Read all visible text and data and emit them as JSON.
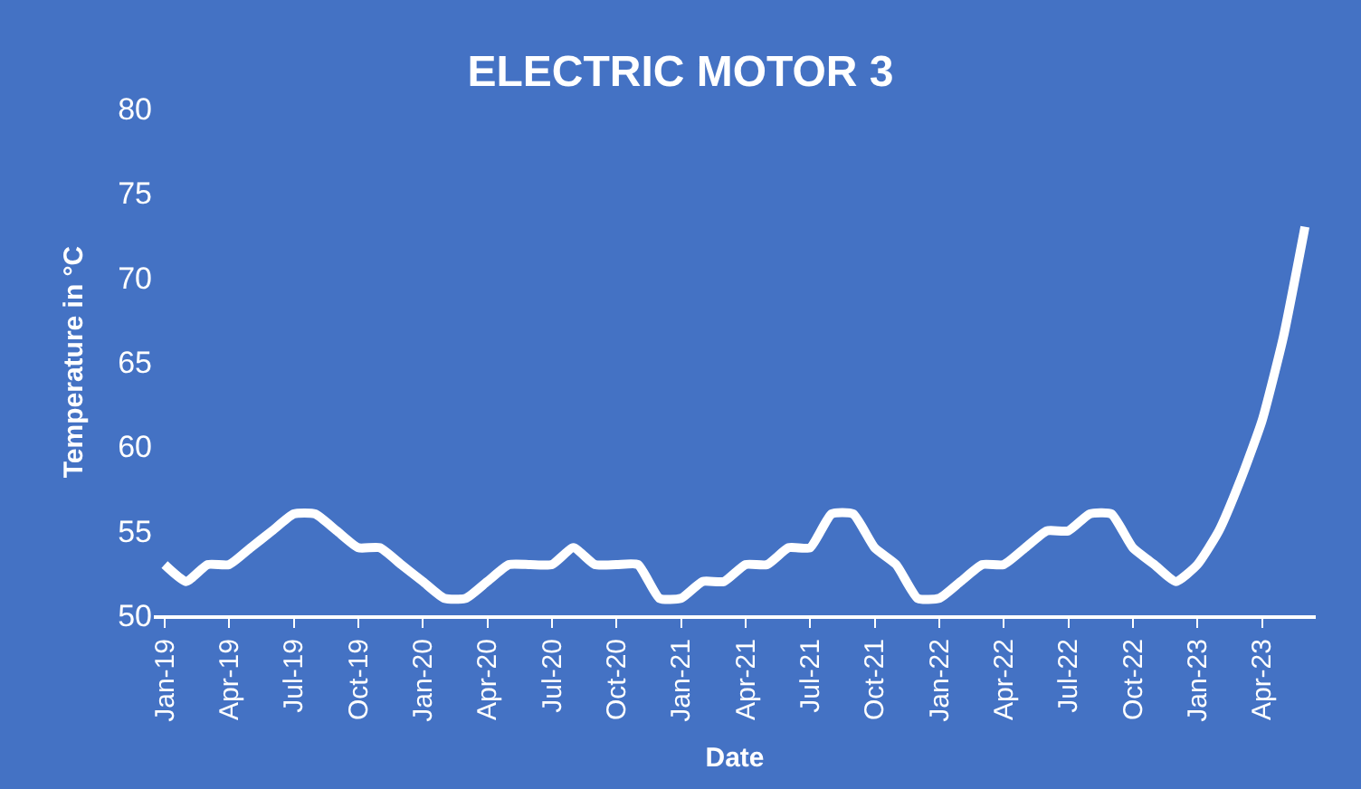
{
  "chart_data": {
    "type": "line",
    "title": "ELECTRIC MOTOR 3",
    "xlabel": "Date",
    "ylabel": "Temperature in °C",
    "categories": [
      "Jan-19",
      null,
      null,
      "Apr-19",
      null,
      null,
      "Jul-19",
      null,
      null,
      "Oct-19",
      null,
      null,
      "Jan-20",
      null,
      null,
      "Apr-20",
      null,
      null,
      "Jul-20",
      null,
      null,
      "Oct-20",
      null,
      null,
      "Jan-21",
      null,
      null,
      "Apr-21",
      null,
      null,
      "Jul-21",
      null,
      null,
      "Oct-21",
      null,
      null,
      "Jan-22",
      null,
      null,
      "Apr-22",
      null,
      null,
      "Jul-22",
      null,
      null,
      "Oct-22",
      null,
      null,
      "Jan-23",
      null,
      null,
      "Apr-23",
      null,
      null
    ],
    "series": [
      {
        "color": "#ffffff",
        "values": [
          53,
          52,
          53,
          53,
          54,
          55,
          56,
          56,
          55,
          54,
          54,
          53,
          52,
          51,
          51,
          52,
          53,
          53,
          53,
          54,
          53,
          53,
          53,
          51,
          51,
          52,
          52,
          53,
          53,
          54,
          54,
          56,
          56,
          54,
          53,
          51,
          51,
          52,
          53,
          53,
          54,
          55,
          55,
          56,
          56,
          54,
          53,
          52,
          53,
          55,
          58,
          61.5,
          66.5,
          73
        ]
      }
    ],
    "ylim": [
      50,
      80
    ],
    "yticks": [
      50,
      55,
      60,
      65,
      70,
      75,
      80
    ],
    "grid": false,
    "marker": "none",
    "line_style": "solid"
  }
}
